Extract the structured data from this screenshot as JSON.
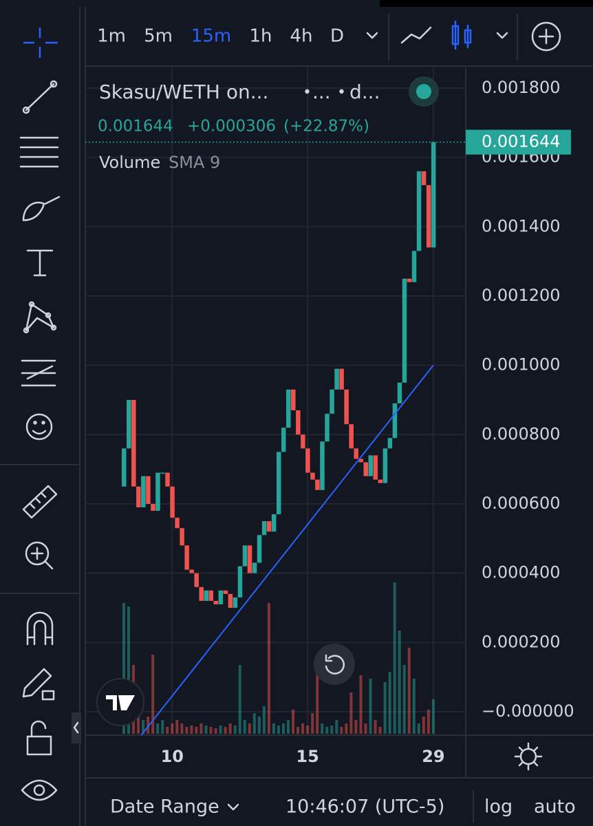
{
  "toolbar": {
    "timeframes": [
      "1m",
      "5m",
      "15m",
      "1h",
      "4h",
      "D"
    ],
    "active": "15m"
  },
  "legend": {
    "symbol": "Skasu/WETH on...",
    "dot1": "•",
    "exchange": "...",
    "dot2": "•",
    "source": "d...",
    "price": "0.001644",
    "change": "+0.000306",
    "change_pct": "(+22.87%)",
    "indicator": "Volume",
    "indicator_params": "SMA 9"
  },
  "chart_data": {
    "type": "candlestick",
    "categories": [
      null,
      null,
      null,
      null,
      null,
      null,
      null,
      null,
      null,
      null,
      "10",
      null,
      null,
      null,
      null,
      null,
      null,
      null,
      null,
      null,
      null,
      null,
      null,
      null,
      null,
      null,
      null,
      null,
      null,
      null,
      null,
      null,
      null,
      null,
      null,
      null,
      null,
      null,
      "15",
      null,
      null,
      null,
      null,
      null,
      null,
      null,
      null,
      null,
      null,
      null,
      null,
      null,
      null,
      null,
      null,
      null,
      null,
      null,
      null,
      null,
      null,
      null,
      null,
      null,
      "29"
    ],
    "open": [
      0.00065,
      0.00076,
      0.0009,
      0.00065,
      0.00059,
      0.00068,
      0.0006,
      0.00058,
      0.00069,
      0.00069,
      0.00065,
      0.00056,
      0.00053,
      0.00048,
      0.00041,
      0.0004,
      0.00036,
      0.00032,
      0.00035,
      0.00032,
      0.00031,
      0.00035,
      0.00034,
      0.0003,
      0.00033,
      0.00042,
      0.00048,
      0.0004,
      0.00043,
      0.00051,
      0.00055,
      0.00052,
      0.00057,
      0.00075,
      0.00082,
      0.00093,
      0.00087,
      0.0008,
      0.00076,
      0.00069,
      0.00067,
      0.00064,
      0.00078,
      0.00086,
      0.00093,
      0.00099,
      0.00093,
      0.00083,
      0.00076,
      0.00073,
      0.00072,
      0.00068,
      0.00074,
      0.00067,
      0.00066,
      0.00076,
      0.00079,
      0.00089,
      0.00095,
      0.00125,
      0.00124,
      0.00133,
      0.00156,
      0.00152,
      0.00134
    ],
    "close": [
      0.00076,
      0.0009,
      0.00065,
      0.00059,
      0.00068,
      0.0006,
      0.00058,
      0.00069,
      0.00069,
      0.00065,
      0.00056,
      0.00053,
      0.00048,
      0.00041,
      0.0004,
      0.00036,
      0.00032,
      0.00035,
      0.00032,
      0.00031,
      0.00035,
      0.00034,
      0.0003,
      0.00033,
      0.00042,
      0.00048,
      0.0004,
      0.00043,
      0.00051,
      0.00055,
      0.00052,
      0.00057,
      0.00075,
      0.00082,
      0.00093,
      0.00087,
      0.0008,
      0.00076,
      0.00069,
      0.00067,
      0.00064,
      0.00078,
      0.00086,
      0.00093,
      0.00099,
      0.00093,
      0.00083,
      0.00076,
      0.00073,
      0.00072,
      0.00068,
      0.00074,
      0.00067,
      0.00066,
      0.00076,
      0.00079,
      0.00089,
      0.00095,
      0.00125,
      0.00124,
      0.00133,
      0.00156,
      0.00152,
      0.00134,
      0.001644
    ],
    "volume": [
      190,
      185,
      100,
      40,
      20,
      25,
      115,
      15,
      20,
      10,
      15,
      20,
      15,
      10,
      12,
      10,
      15,
      12,
      10,
      8,
      12,
      10,
      15,
      12,
      100,
      20,
      15,
      30,
      25,
      40,
      190,
      15,
      12,
      15,
      20,
      35,
      10,
      15,
      12,
      30,
      95,
      15,
      10,
      12,
      20,
      10,
      15,
      60,
      20,
      85,
      15,
      80,
      20,
      10,
      75,
      90,
      220,
      150,
      100,
      125,
      80,
      15,
      25,
      35,
      50
    ],
    "up_color": "#26a69a",
    "down_color": "#ef5350",
    "trendline_color": "#2962ff",
    "trendline": {
      "x": [
        3.6,
        64
      ],
      "y": [
        -6.75e-05,
        0.001
      ]
    },
    "ylim": [
      0,
      0.0018
    ],
    "yticks": [
      {
        "value": 0.0018,
        "label": "0.001800"
      },
      {
        "value": 0.0016,
        "label": "0.001600"
      },
      {
        "value": 0.0014,
        "label": "0.001400"
      },
      {
        "value": 0.0012,
        "label": "0.001200"
      },
      {
        "value": 0.001,
        "label": "0.001000"
      },
      {
        "value": 0.0008,
        "label": "0.000800"
      },
      {
        "value": 0.0006,
        "label": "0.000600"
      },
      {
        "value": 0.0004,
        "label": "0.000400"
      },
      {
        "value": 0.0002,
        "label": "0.000200"
      },
      {
        "value": 0,
        "label": "−0.000000"
      }
    ],
    "last_price": {
      "value": 0.001644,
      "label": "0.001644"
    },
    "grid": true
  },
  "footer": {
    "date_range": "Date Range",
    "time": "10:46:07 (UTC-5)",
    "log": "log",
    "auto": "auto"
  }
}
